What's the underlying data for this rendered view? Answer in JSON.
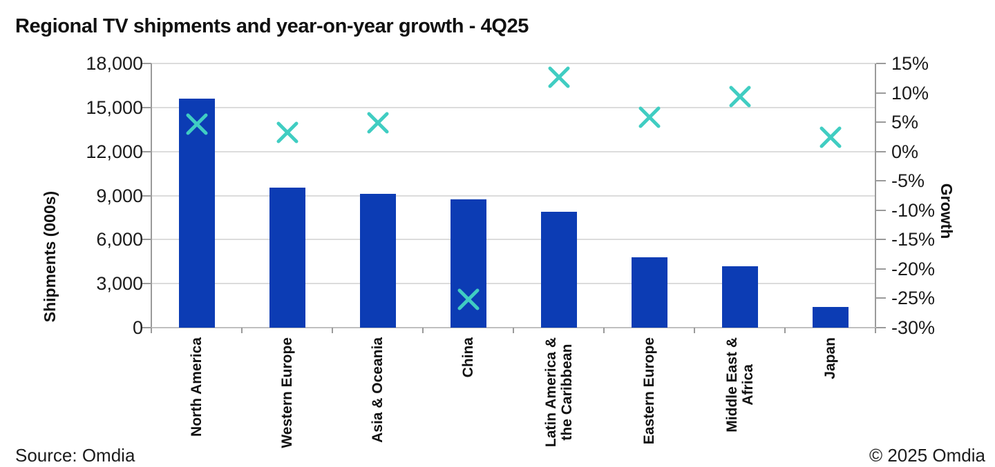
{
  "title": "Regional TV shipments and year-on-year growth - 4Q25",
  "footer": {
    "source": "Source: Omdia",
    "copyright": "© 2025 Omdia"
  },
  "colors": {
    "bar": "#0C3CB4",
    "marker": "#40CDC2",
    "gridline": "#dcdcdc",
    "axis": "#9a9a9a"
  },
  "chart_data": {
    "type": "combo",
    "subtype": "bar + scatter (X markers), dual axis",
    "title": "Regional TV shipments and year-on-year growth - 4Q25",
    "categories": [
      "North America",
      "Western Europe",
      "Asia & Oceania",
      "China",
      "Latin America & the Caribbean",
      "Eastern Europe",
      "Middle East & Africa",
      "Japan"
    ],
    "categories_wrapped": [
      [
        "North America"
      ],
      [
        "Western Europe"
      ],
      [
        "Asia & Oceania"
      ],
      [
        "China"
      ],
      [
        "Latin America &",
        "the Caribbean"
      ],
      [
        "Eastern Europe"
      ],
      [
        "Middle East &",
        "Africa"
      ],
      [
        "Japan"
      ]
    ],
    "series": [
      {
        "name": "Shipments",
        "type": "bar",
        "axis": "left",
        "color": "#0C3CB4",
        "values": [
          15600,
          9550,
          9100,
          8750,
          7900,
          4800,
          4200,
          1400
        ]
      },
      {
        "name": "Growth",
        "type": "scatter",
        "marker": "x",
        "axis": "right",
        "color": "#40CDC2",
        "values": [
          4.7,
          3.2,
          4.9,
          -25.2,
          12.6,
          5.8,
          9.4,
          2.4
        ]
      }
    ],
    "left_axis": {
      "title": "Shipments (000s)",
      "min": 0,
      "max": 18000,
      "step": 3000,
      "tick_values": [
        0,
        3000,
        6000,
        9000,
        12000,
        15000,
        18000
      ],
      "tick_labels": [
        "0",
        "3,000",
        "6,000",
        "9,000",
        "12,000",
        "15,000",
        "18,000"
      ]
    },
    "right_axis": {
      "title": "Growth",
      "min": -30,
      "max": 15,
      "step": 5,
      "tick_values": [
        15,
        10,
        5,
        0,
        -5,
        -10,
        -15,
        -20,
        -25,
        -30
      ],
      "tick_labels": [
        "15%",
        "10%",
        "5%",
        "0%",
        "-5%",
        "-10%",
        "-15%",
        "-20%",
        "-25%",
        "-30%"
      ]
    },
    "grid": "horizontal gridlines at left-axis ticks, light gray",
    "legend": "none"
  }
}
